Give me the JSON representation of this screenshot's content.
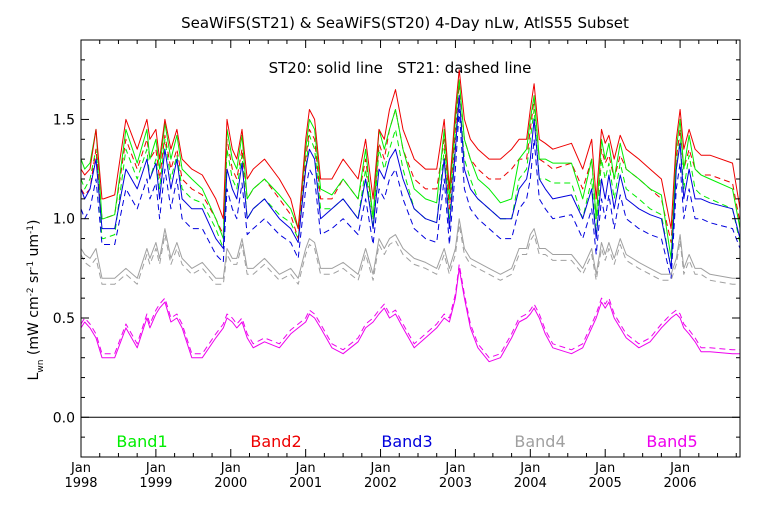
{
  "chart_data": {
    "type": "line",
    "title": "SeaWiFS(ST21) & SeaWiFS(ST20) 4-Day nLw, AtlS55 Subset",
    "annotation": "ST20: solid line   ST21: dashed line",
    "ylabel": {
      "main": "L",
      "sub": "wn",
      "open": " (mW cm",
      "sup1": "-2",
      "mid1": " sr",
      "sup2": "-1",
      "mid2": " um",
      "sup3": "-1",
      "close": ")"
    },
    "ylim": [
      -0.2,
      1.9
    ],
    "xlim": [
      1998.0,
      2006.8
    ],
    "y_ticks": [
      "0.0",
      "0.5",
      "1.0",
      "1.5"
    ],
    "x_ticks": [
      {
        "month": "Jan",
        "year": "1998"
      },
      {
        "month": "Jan",
        "year": "1999"
      },
      {
        "month": "Jan",
        "year": "2000"
      },
      {
        "month": "Jan",
        "year": "2001"
      },
      {
        "month": "Jan",
        "year": "2002"
      },
      {
        "month": "Jan",
        "year": "2003"
      },
      {
        "month": "Jan",
        "year": "2004"
      },
      {
        "month": "Jan",
        "year": "2005"
      },
      {
        "month": "Jan",
        "year": "2006"
      }
    ],
    "zero_line": 0.0,
    "x": [
      1998.0,
      1998.05,
      1998.12,
      1998.2,
      1998.28,
      1998.3,
      1998.45,
      1998.6,
      1998.75,
      1998.88,
      1998.92,
      1999.0,
      1999.05,
      1999.12,
      1999.2,
      1999.28,
      1999.35,
      1999.48,
      1999.62,
      1999.8,
      1999.9,
      1999.95,
      2000.02,
      2000.08,
      2000.15,
      2000.22,
      2000.3,
      2000.45,
      2000.65,
      2000.8,
      2000.9,
      2001.0,
      2001.05,
      2001.12,
      2001.2,
      2001.35,
      2001.5,
      2001.7,
      2001.8,
      2001.9,
      2001.98,
      2002.05,
      2002.12,
      2002.2,
      2002.3,
      2002.45,
      2002.6,
      2002.75,
      2002.85,
      2002.92,
      2003.0,
      2003.05,
      2003.12,
      2003.2,
      2003.3,
      2003.45,
      2003.6,
      2003.75,
      2003.85,
      2003.95,
      2004.0,
      2004.05,
      2004.12,
      2004.2,
      2004.3,
      2004.55,
      2004.7,
      2004.82,
      2004.88,
      2004.95,
      2005.0,
      2005.05,
      2005.12,
      2005.2,
      2005.28,
      2005.45,
      2005.6,
      2005.75,
      2005.88,
      2005.95,
      2006.0,
      2006.05,
      2006.12,
      2006.2,
      2006.28,
      2006.4,
      2006.7,
      2006.8
    ],
    "series": [
      {
        "name": "Band1",
        "color": "#00ee00",
        "style": "solid",
        "values": [
          1.3,
          1.25,
          1.28,
          1.45,
          1.0,
          1.0,
          1.02,
          1.45,
          1.28,
          1.45,
          1.3,
          1.4,
          1.25,
          1.48,
          1.3,
          1.42,
          1.25,
          1.2,
          1.15,
          1.0,
          0.9,
          1.45,
          1.3,
          1.25,
          1.42,
          1.1,
          1.15,
          1.2,
          1.12,
          1.05,
          0.95,
          1.35,
          1.5,
          1.45,
          1.15,
          1.12,
          1.2,
          1.1,
          1.35,
          1.0,
          1.45,
          1.35,
          1.45,
          1.55,
          1.35,
          1.15,
          1.1,
          1.08,
          1.45,
          1.1,
          1.5,
          1.7,
          1.4,
          1.3,
          1.2,
          1.15,
          1.08,
          1.1,
          1.3,
          1.35,
          1.5,
          1.62,
          1.3,
          1.3,
          1.28,
          1.28,
          1.1,
          1.3,
          1.0,
          1.4,
          1.3,
          1.38,
          1.2,
          1.38,
          1.25,
          1.2,
          1.15,
          1.12,
          0.8,
          1.35,
          1.5,
          1.25,
          1.42,
          1.25,
          1.22,
          1.2,
          1.15,
          0.95
        ]
      },
      {
        "name": "Band2",
        "color": "#ee0000",
        "style": "solid",
        "values": [
          1.25,
          1.22,
          1.25,
          1.45,
          1.1,
          1.1,
          1.12,
          1.5,
          1.35,
          1.5,
          1.4,
          1.45,
          1.3,
          1.5,
          1.35,
          1.45,
          1.3,
          1.25,
          1.22,
          1.1,
          1.0,
          1.5,
          1.35,
          1.3,
          1.45,
          1.2,
          1.25,
          1.3,
          1.2,
          1.1,
          0.95,
          1.4,
          1.55,
          1.5,
          1.2,
          1.2,
          1.3,
          1.2,
          1.4,
          1.1,
          1.45,
          1.4,
          1.55,
          1.65,
          1.45,
          1.3,
          1.25,
          1.25,
          1.5,
          1.15,
          1.55,
          1.75,
          1.5,
          1.4,
          1.35,
          1.3,
          1.3,
          1.35,
          1.4,
          1.4,
          1.55,
          1.68,
          1.4,
          1.38,
          1.35,
          1.38,
          1.25,
          1.4,
          1.1,
          1.45,
          1.38,
          1.42,
          1.3,
          1.42,
          1.35,
          1.3,
          1.25,
          1.2,
          0.95,
          1.4,
          1.55,
          1.35,
          1.45,
          1.35,
          1.32,
          1.32,
          1.28,
          1.05
        ]
      },
      {
        "name": "Band3",
        "color": "#0000dd",
        "style": "solid",
        "values": [
          1.15,
          1.1,
          1.15,
          1.3,
          0.95,
          0.95,
          0.95,
          1.25,
          1.15,
          1.3,
          1.2,
          1.28,
          1.1,
          1.35,
          1.15,
          1.3,
          1.1,
          1.05,
          1.05,
          0.9,
          0.85,
          1.25,
          1.15,
          1.1,
          1.28,
          1.0,
          1.05,
          1.1,
          1.0,
          0.95,
          0.88,
          1.25,
          1.35,
          1.3,
          1.0,
          1.05,
          1.1,
          1.0,
          1.2,
          0.95,
          1.25,
          1.2,
          1.3,
          1.35,
          1.2,
          1.05,
          1.0,
          0.98,
          1.3,
          0.95,
          1.35,
          1.62,
          1.25,
          1.15,
          1.1,
          1.05,
          1.0,
          1.0,
          1.15,
          1.2,
          1.3,
          1.5,
          1.2,
          1.15,
          1.1,
          1.12,
          1.0,
          1.15,
          0.9,
          1.2,
          1.1,
          1.22,
          1.05,
          1.22,
          1.1,
          1.05,
          1.02,
          1.0,
          0.75,
          1.25,
          1.38,
          1.1,
          1.25,
          1.1,
          1.1,
          1.08,
          1.05,
          0.9
        ]
      },
      {
        "name": "Band4",
        "color": "#a0a0a0",
        "style": "solid",
        "values": [
          0.85,
          0.82,
          0.8,
          0.85,
          0.7,
          0.7,
          0.7,
          0.75,
          0.7,
          0.85,
          0.8,
          0.88,
          0.8,
          0.95,
          0.8,
          0.88,
          0.8,
          0.75,
          0.78,
          0.7,
          0.7,
          0.85,
          0.8,
          0.8,
          0.9,
          0.75,
          0.75,
          0.8,
          0.72,
          0.75,
          0.7,
          0.85,
          0.9,
          0.88,
          0.75,
          0.75,
          0.78,
          0.72,
          0.85,
          0.72,
          0.9,
          0.85,
          0.9,
          0.92,
          0.85,
          0.8,
          0.78,
          0.75,
          0.85,
          0.75,
          0.85,
          1.0,
          0.85,
          0.8,
          0.78,
          0.75,
          0.72,
          0.75,
          0.85,
          0.85,
          0.92,
          0.95,
          0.85,
          0.85,
          0.82,
          0.82,
          0.75,
          0.85,
          0.72,
          0.88,
          0.82,
          0.88,
          0.8,
          0.9,
          0.82,
          0.78,
          0.75,
          0.72,
          0.72,
          0.8,
          0.92,
          0.75,
          0.82,
          0.75,
          0.75,
          0.72,
          0.7,
          0.7
        ]
      },
      {
        "name": "Band5",
        "color": "#ee00ee",
        "style": "solid",
        "values": [
          0.45,
          0.48,
          0.45,
          0.4,
          0.3,
          0.3,
          0.3,
          0.45,
          0.35,
          0.5,
          0.45,
          0.52,
          0.55,
          0.58,
          0.48,
          0.5,
          0.45,
          0.3,
          0.3,
          0.4,
          0.45,
          0.5,
          0.48,
          0.45,
          0.48,
          0.4,
          0.35,
          0.38,
          0.35,
          0.42,
          0.45,
          0.48,
          0.52,
          0.5,
          0.45,
          0.35,
          0.32,
          0.38,
          0.45,
          0.48,
          0.52,
          0.55,
          0.5,
          0.52,
          0.45,
          0.35,
          0.4,
          0.45,
          0.5,
          0.48,
          0.6,
          0.75,
          0.6,
          0.45,
          0.35,
          0.28,
          0.3,
          0.4,
          0.48,
          0.5,
          0.52,
          0.55,
          0.5,
          0.42,
          0.35,
          0.32,
          0.35,
          0.45,
          0.5,
          0.58,
          0.55,
          0.58,
          0.5,
          0.45,
          0.4,
          0.35,
          0.38,
          0.45,
          0.5,
          0.52,
          0.5,
          0.45,
          0.42,
          0.38,
          0.33,
          0.33,
          0.32,
          0.32
        ]
      },
      {
        "name": "Band1",
        "color": "#00ee00",
        "style": "dashed",
        "values": [
          1.2,
          1.15,
          1.2,
          1.35,
          0.9,
          0.9,
          0.92,
          1.35,
          1.2,
          1.35,
          1.2,
          1.3,
          1.15,
          1.4,
          1.2,
          1.32,
          1.15,
          1.1,
          1.08,
          0.95,
          0.85,
          1.35,
          1.2,
          1.15,
          1.32,
          1.0,
          1.05,
          1.1,
          1.02,
          0.98,
          0.9,
          1.25,
          1.42,
          1.35,
          1.05,
          1.05,
          1.1,
          1.0,
          1.25,
          0.95,
          1.35,
          1.25,
          1.35,
          1.45,
          1.25,
          1.05,
          1.0,
          0.98,
          1.35,
          1.0,
          1.4,
          1.62,
          1.3,
          1.2,
          1.1,
          1.05,
          1.0,
          1.0,
          1.2,
          1.25,
          1.4,
          1.55,
          1.2,
          1.2,
          1.18,
          1.18,
          1.0,
          1.2,
          0.92,
          1.3,
          1.2,
          1.28,
          1.1,
          1.28,
          1.15,
          1.1,
          1.05,
          1.02,
          0.75,
          1.25,
          1.4,
          1.15,
          1.32,
          1.15,
          1.12,
          1.1,
          1.05,
          0.88
        ]
      },
      {
        "name": "Band2",
        "color": "#ee0000",
        "style": "dashed",
        "values": [
          1.15,
          1.12,
          1.15,
          1.35,
          1.0,
          1.0,
          1.02,
          1.4,
          1.25,
          1.4,
          1.3,
          1.35,
          1.2,
          1.42,
          1.25,
          1.35,
          1.2,
          1.15,
          1.12,
          1.0,
          0.92,
          1.4,
          1.25,
          1.2,
          1.35,
          1.1,
          1.15,
          1.2,
          1.1,
          1.02,
          0.9,
          1.3,
          1.45,
          1.4,
          1.1,
          1.1,
          1.2,
          1.1,
          1.3,
          1.0,
          1.38,
          1.3,
          1.45,
          1.55,
          1.35,
          1.2,
          1.15,
          1.15,
          1.4,
          1.05,
          1.45,
          1.68,
          1.4,
          1.3,
          1.25,
          1.2,
          1.2,
          1.25,
          1.3,
          1.3,
          1.45,
          1.6,
          1.3,
          1.28,
          1.25,
          1.28,
          1.15,
          1.3,
          1.0,
          1.35,
          1.28,
          1.32,
          1.2,
          1.32,
          1.25,
          1.2,
          1.15,
          1.1,
          0.88,
          1.3,
          1.45,
          1.25,
          1.35,
          1.25,
          1.22,
          1.22,
          1.18,
          0.98
        ]
      },
      {
        "name": "Band3",
        "color": "#0000dd",
        "style": "dashed",
        "values": [
          1.05,
          1.0,
          1.05,
          1.2,
          0.87,
          0.87,
          0.87,
          1.15,
          1.05,
          1.2,
          1.1,
          1.18,
          1.0,
          1.25,
          1.05,
          1.2,
          1.0,
          0.95,
          0.95,
          0.82,
          0.78,
          1.15,
          1.05,
          1.0,
          1.18,
          0.92,
          0.95,
          1.0,
          0.92,
          0.88,
          0.8,
          1.15,
          1.25,
          1.2,
          0.92,
          0.95,
          1.0,
          0.92,
          1.1,
          0.87,
          1.15,
          1.1,
          1.2,
          1.25,
          1.1,
          0.95,
          0.9,
          0.88,
          1.2,
          0.87,
          1.25,
          1.55,
          1.15,
          1.05,
          1.0,
          0.95,
          0.9,
          0.9,
          1.05,
          1.1,
          1.2,
          1.4,
          1.1,
          1.05,
          1.0,
          1.02,
          0.9,
          1.05,
          0.82,
          1.1,
          1.0,
          1.12,
          0.95,
          1.12,
          1.0,
          0.95,
          0.92,
          0.9,
          0.7,
          1.15,
          1.28,
          1.0,
          1.15,
          1.0,
          1.0,
          0.98,
          0.95,
          0.85
        ]
      },
      {
        "name": "Band4",
        "color": "#a0a0a0",
        "style": "dashed",
        "values": [
          0.82,
          0.78,
          0.76,
          0.8,
          0.67,
          0.67,
          0.67,
          0.72,
          0.67,
          0.82,
          0.77,
          0.85,
          0.77,
          0.92,
          0.77,
          0.85,
          0.77,
          0.72,
          0.75,
          0.67,
          0.67,
          0.82,
          0.77,
          0.77,
          0.87,
          0.72,
          0.72,
          0.77,
          0.69,
          0.72,
          0.67,
          0.82,
          0.87,
          0.85,
          0.72,
          0.72,
          0.75,
          0.69,
          0.82,
          0.69,
          0.87,
          0.82,
          0.87,
          0.89,
          0.82,
          0.77,
          0.75,
          0.72,
          0.82,
          0.72,
          0.82,
          0.97,
          0.82,
          0.77,
          0.75,
          0.72,
          0.69,
          0.72,
          0.82,
          0.82,
          0.89,
          0.92,
          0.82,
          0.82,
          0.79,
          0.79,
          0.72,
          0.82,
          0.69,
          0.85,
          0.79,
          0.85,
          0.77,
          0.87,
          0.79,
          0.75,
          0.72,
          0.69,
          0.69,
          0.77,
          0.89,
          0.72,
          0.79,
          0.72,
          0.72,
          0.69,
          0.67,
          0.67
        ]
      },
      {
        "name": "Band5",
        "color": "#ee00ee",
        "style": "dashed",
        "values": [
          0.47,
          0.5,
          0.47,
          0.42,
          0.32,
          0.32,
          0.32,
          0.47,
          0.37,
          0.52,
          0.47,
          0.54,
          0.57,
          0.6,
          0.5,
          0.52,
          0.47,
          0.32,
          0.32,
          0.42,
          0.47,
          0.52,
          0.5,
          0.47,
          0.5,
          0.42,
          0.37,
          0.4,
          0.37,
          0.44,
          0.47,
          0.5,
          0.54,
          0.52,
          0.47,
          0.37,
          0.34,
          0.4,
          0.47,
          0.5,
          0.54,
          0.57,
          0.52,
          0.54,
          0.47,
          0.37,
          0.42,
          0.47,
          0.52,
          0.5,
          0.62,
          0.77,
          0.62,
          0.47,
          0.37,
          0.3,
          0.32,
          0.42,
          0.5,
          0.52,
          0.54,
          0.57,
          0.52,
          0.44,
          0.37,
          0.34,
          0.37,
          0.47,
          0.52,
          0.6,
          0.57,
          0.6,
          0.52,
          0.47,
          0.42,
          0.37,
          0.4,
          0.47,
          0.52,
          0.54,
          0.52,
          0.47,
          0.44,
          0.4,
          0.35,
          0.35,
          0.34,
          0.34
        ]
      }
    ],
    "legend": [
      {
        "label": "Band1",
        "color": "#00ee00"
      },
      {
        "label": "Band2",
        "color": "#ee0000"
      },
      {
        "label": "Band3",
        "color": "#0000dd"
      },
      {
        "label": "Band4",
        "color": "#a0a0a0"
      },
      {
        "label": "Band5",
        "color": "#ee00ee"
      }
    ],
    "legend_placement": "bottom-inside",
    "grid": false
  }
}
